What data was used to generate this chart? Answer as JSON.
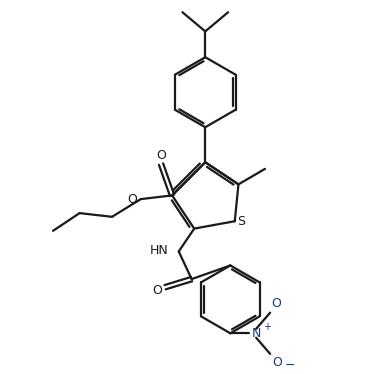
{
  "background": "#ffffff",
  "line_color": "#1a1a1a",
  "line_width": 1.6,
  "figsize": [
    3.7,
    3.74
  ],
  "dpi": 100,
  "xlim": [
    0,
    10
  ],
  "ylim": [
    0,
    10
  ]
}
